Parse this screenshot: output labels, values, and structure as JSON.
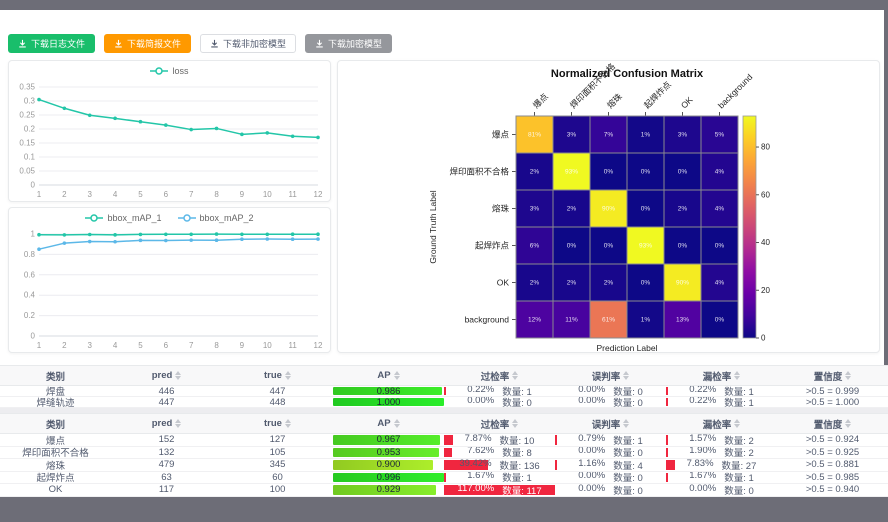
{
  "toolbar": {
    "buttons": [
      {
        "label": "下载日志文件",
        "variant": "green"
      },
      {
        "label": "下载简报文件",
        "variant": "orange"
      },
      {
        "label": "下载非加密模型",
        "variant": "plain"
      },
      {
        "label": "下载加密模型",
        "variant": "gray"
      }
    ]
  },
  "chart_data": [
    {
      "type": "line",
      "title": "",
      "x": [
        1,
        2,
        3,
        4,
        5,
        6,
        7,
        8,
        9,
        10,
        11,
        12
      ],
      "series": [
        {
          "name": "loss",
          "color": "#23c6a8",
          "values": [
            0.305,
            0.274,
            0.249,
            0.238,
            0.226,
            0.214,
            0.198,
            0.202,
            0.181,
            0.186,
            0.174,
            0.17
          ]
        }
      ],
      "ylim": [
        0,
        0.35
      ],
      "yticks": [
        0,
        0.05,
        0.1,
        0.15,
        0.2,
        0.25,
        0.3,
        0.35
      ],
      "legend_position": "top",
      "grid": true
    },
    {
      "type": "line",
      "title": "",
      "x": [
        1,
        2,
        3,
        4,
        5,
        6,
        7,
        8,
        9,
        10,
        11,
        12
      ],
      "series": [
        {
          "name": "bbox_mAP_1",
          "color": "#23c6a8",
          "values": [
            0.993,
            0.991,
            0.995,
            0.992,
            0.996,
            0.997,
            0.997,
            0.999,
            0.997,
            0.997,
            0.998,
            0.998
          ]
        },
        {
          "name": "bbox_mAP_2",
          "color": "#5cb8e8",
          "values": [
            0.851,
            0.91,
            0.926,
            0.924,
            0.938,
            0.936,
            0.94,
            0.939,
            0.949,
            0.951,
            0.949,
            0.95
          ]
        }
      ],
      "ylim": [
        0,
        1
      ],
      "yticks": [
        0,
        0.2,
        0.4,
        0.6,
        0.8,
        1
      ],
      "legend_position": "top",
      "grid": true
    },
    {
      "type": "heatmap",
      "title": "Normalized Confusion Matrix",
      "xlabel": "Prediction Label",
      "ylabel": "Ground Truth Label",
      "labels": [
        "爆点",
        "焊印面积不合格",
        "熔珠",
        "起焊炸点",
        "OK",
        "background"
      ],
      "matrix": [
        [
          81,
          3,
          7,
          1,
          3,
          5
        ],
        [
          2,
          93,
          0,
          0,
          0,
          4
        ],
        [
          3,
          2,
          90,
          0,
          2,
          4
        ],
        [
          6,
          0,
          0,
          93,
          0,
          0
        ],
        [
          2,
          2,
          2,
          0,
          90,
          4
        ],
        [
          12,
          11,
          61,
          1,
          13,
          0
        ]
      ],
      "value_suffix": "%",
      "colorbar_ticks": [
        0,
        20,
        40,
        60,
        80
      ],
      "colorbar_max": 93,
      "colormap": "plasma"
    }
  ],
  "tables": {
    "headers": [
      "类别",
      "pred",
      "true",
      "AP",
      "过检率",
      "误判率",
      "漏检率",
      "置信度"
    ],
    "count_label": "数量:",
    "table1": {
      "rows": [
        {
          "name": "焊盘",
          "pred": 446,
          "true": 447,
          "ap": 0.986,
          "over": {
            "pct": "0.22%",
            "n": 1
          },
          "mis": {
            "pct": "0.00%",
            "n": 0
          },
          "miss": {
            "pct": "0.22%",
            "n": 1
          },
          "conf": ">0.5 = 0.999"
        },
        {
          "name": "焊缝轨迹",
          "pred": 447,
          "true": 448,
          "ap": 1.0,
          "over": {
            "pct": "0.00%",
            "n": 0
          },
          "mis": {
            "pct": "0.00%",
            "n": 0
          },
          "miss": {
            "pct": "0.22%",
            "n": 1
          },
          "conf": ">0.5 = 1.000"
        }
      ]
    },
    "table2": {
      "rows": [
        {
          "name": "爆点",
          "pred": 152,
          "true": 127,
          "ap": 0.967,
          "over": {
            "pct": "7.87%",
            "n": 10
          },
          "mis": {
            "pct": "0.79%",
            "n": 1
          },
          "miss": {
            "pct": "1.57%",
            "n": 2
          },
          "conf": ">0.5 = 0.924"
        },
        {
          "name": "焊印面积不合格",
          "pred": 132,
          "true": 105,
          "ap": 0.953,
          "over": {
            "pct": "7.62%",
            "n": 8
          },
          "mis": {
            "pct": "0.00%",
            "n": 0
          },
          "miss": {
            "pct": "1.90%",
            "n": 2
          },
          "conf": ">0.5 = 0.925"
        },
        {
          "name": "熔珠",
          "pred": 479,
          "true": 345,
          "ap": 0.9,
          "over": {
            "pct": "39.42%",
            "n": 136
          },
          "mis": {
            "pct": "1.16%",
            "n": 4
          },
          "miss": {
            "pct": "7.83%",
            "n": 27
          },
          "conf": ">0.5 = 0.881"
        },
        {
          "name": "起焊炸点",
          "pred": 63,
          "true": 60,
          "ap": 0.996,
          "over": {
            "pct": "1.67%",
            "n": 1
          },
          "mis": {
            "pct": "0.00%",
            "n": 0
          },
          "miss": {
            "pct": "1.67%",
            "n": 1
          },
          "conf": ">0.5 = 0.985"
        },
        {
          "name": "OK",
          "pred": 117,
          "true": 100,
          "ap": 0.929,
          "over": {
            "pct": "117.00%",
            "n": 117
          },
          "mis": {
            "pct": "0.00%",
            "n": 0
          },
          "miss": {
            "pct": "0.00%",
            "n": 0
          },
          "conf": ">0.5 = 0.940"
        }
      ]
    }
  },
  "colors": {
    "accent_green": "#19be6b",
    "accent_orange": "#ff9900",
    "line_teal": "#23c6a8",
    "line_blue": "#5cb8e8",
    "bar_red": "#f0263f",
    "header_text": "#515a6e"
  }
}
